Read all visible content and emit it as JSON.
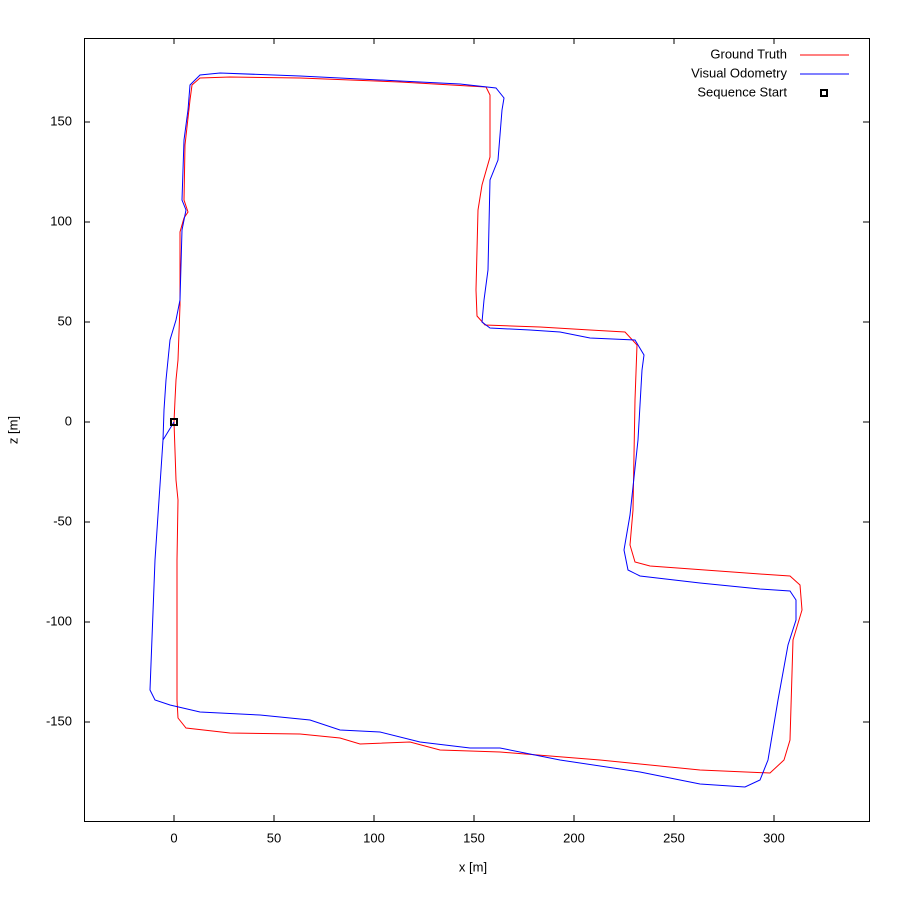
{
  "chart_data": {
    "type": "line",
    "xlabel": "x [m]",
    "ylabel": "z [m]",
    "xlim": [
      -45,
      347.5
    ],
    "ylim": [
      -199.5,
      192
    ],
    "xticks": [
      0,
      50,
      100,
      150,
      200,
      250,
      300
    ],
    "yticks": [
      -150,
      -100,
      -50,
      0,
      50,
      100,
      150
    ],
    "legend": "upper right",
    "series": [
      {
        "name": "Ground Truth",
        "color": "#ff0000",
        "style": "line",
        "x": [
          0,
          1,
          2,
          1.5,
          1.5,
          2,
          6,
          28,
          63,
          83,
          93,
          118,
          133,
          163,
          213,
          263,
          298,
          305,
          308,
          309.5,
          314,
          313,
          308,
          293,
          238,
          230.5,
          228,
          229.5,
          230.5,
          231.5,
          225.5,
          208,
          183,
          155.5,
          151.5,
          151,
          152,
          154,
          158,
          158,
          156,
          113,
          63,
          28,
          13,
          9,
          8,
          5.5,
          5,
          7,
          5,
          3,
          3,
          2,
          1,
          0.5,
          0
        ],
        "values": [
          0,
          -29,
          -39,
          -69,
          -139,
          -148,
          -153,
          -155.5,
          -156,
          -158,
          -161,
          -160,
          -164,
          -165,
          -169,
          -174,
          -175.5,
          -169,
          -159,
          -109,
          -94,
          -81.5,
          -77,
          -76,
          -72,
          -70,
          -61.5,
          -44,
          11,
          38.5,
          45,
          46,
          47.5,
          48.5,
          53,
          66,
          106,
          118.5,
          132.5,
          163.5,
          167.5,
          170,
          172,
          172.5,
          172,
          168.5,
          161,
          138.5,
          111,
          105,
          102,
          95,
          58.5,
          31,
          21,
          11,
          0
        ]
      },
      {
        "name": "Visual Odometry",
        "color": "#0000ff",
        "style": "line",
        "x": [
          0,
          -5.5,
          -9.5,
          -12,
          -9.5,
          -2,
          13,
          43,
          68,
          83,
          103,
          123,
          148,
          163,
          193,
          233,
          263,
          285.5,
          293,
          297,
          302,
          307,
          311,
          311,
          308,
          293,
          263,
          233,
          227,
          225,
          228,
          232,
          234,
          235,
          230.5,
          208,
          193,
          178,
          158,
          154,
          155,
          157,
          158,
          162,
          164,
          165,
          161,
          143,
          113,
          63,
          23,
          13,
          8,
          7,
          5,
          4,
          6,
          4,
          3,
          1,
          -2,
          -4,
          -5,
          -5.5
        ],
        "values": [
          0,
          -9,
          -69,
          -134,
          -139,
          -141.5,
          -145,
          -146.5,
          -149,
          -154,
          -155,
          -160,
          -163,
          -163,
          -169,
          -175,
          -181,
          -182.5,
          -179,
          -169,
          -139,
          -111.5,
          -99,
          -89,
          -84.5,
          -83.5,
          -80.5,
          -77,
          -74,
          -64,
          -46.5,
          -9,
          26,
          33.5,
          41,
          42,
          45,
          46,
          47,
          50,
          61,
          76,
          121,
          131,
          156,
          162,
          167,
          169,
          170.5,
          173,
          174.5,
          173.5,
          168.5,
          156,
          141,
          111,
          106,
          96,
          61,
          51,
          41,
          21,
          6,
          -9
        ]
      },
      {
        "name": "Sequence Start",
        "color": "#000000",
        "style": "points",
        "x": [
          0
        ],
        "values": [
          0
        ]
      }
    ]
  }
}
